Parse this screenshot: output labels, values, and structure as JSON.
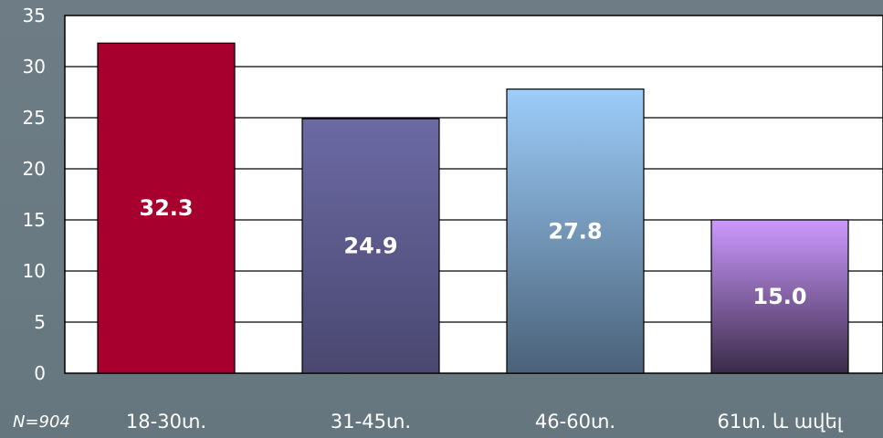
{
  "chart_data": {
    "type": "bar",
    "title": "",
    "xlabel": "",
    "ylabel": "",
    "categories": [
      "18-30տ.",
      "31-45տ.",
      "46-60տ.",
      "61տ. և ավել"
    ],
    "values": [
      32.3,
      24.9,
      27.8,
      15.0
    ],
    "value_labels": [
      "32.3",
      "24.9",
      "27.8",
      "15.0"
    ],
    "ylim": [
      0,
      35
    ],
    "yticks": [
      0,
      5,
      10,
      15,
      20,
      25,
      30,
      35
    ],
    "grid": true,
    "legend": "none",
    "note": "N=904",
    "bar_colors": [
      {
        "top": "#a8002e",
        "bottom": "#a8002e"
      },
      {
        "top": "#6b6aa4",
        "bottom": "#4a4870"
      },
      {
        "top": "#9dcdfa",
        "bottom": "#4a6178"
      },
      {
        "top": "#cc99ff",
        "bottom": "#3a2b48"
      }
    ],
    "plot_background": "#ffffff",
    "text_color": "#ffffff"
  }
}
